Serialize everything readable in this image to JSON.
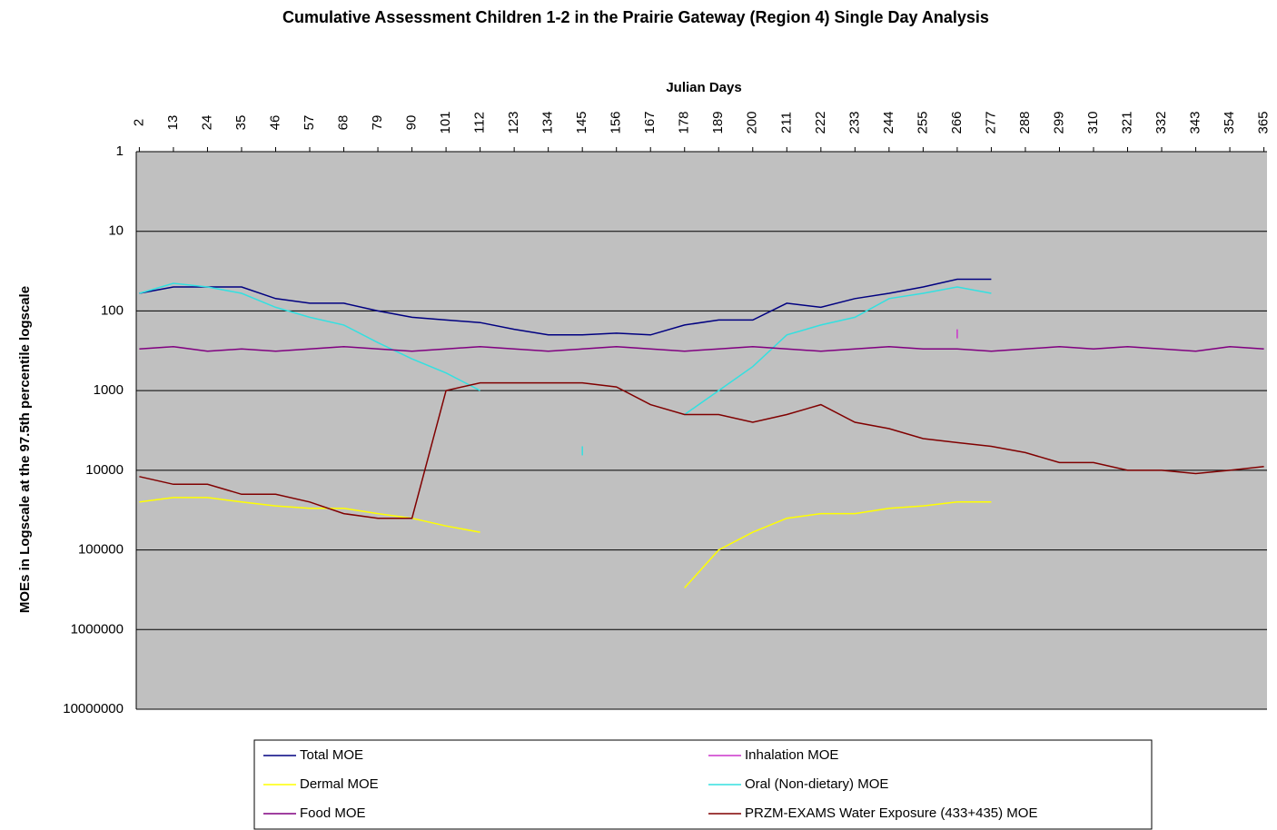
{
  "chart_data": {
    "type": "line",
    "title": "Cumulative Assessment Children 1-2 in the Prairie Gateway (Region 4) Single Day Analysis",
    "x_label": "Julian Days",
    "y_label": "MOEs in Logscale at the 97.5th percentile logscale",
    "x": [
      2,
      13,
      24,
      35,
      46,
      57,
      68,
      79,
      90,
      101,
      112,
      123,
      134,
      145,
      156,
      167,
      178,
      189,
      200,
      211,
      222,
      233,
      244,
      255,
      266,
      277,
      288,
      299,
      310,
      321,
      332,
      343,
      354,
      365
    ],
    "xlim": [
      1,
      366
    ],
    "xticks": [
      2,
      13,
      24,
      35,
      46,
      57,
      68,
      79,
      90,
      101,
      112,
      123,
      134,
      145,
      156,
      167,
      178,
      189,
      200,
      211,
      222,
      233,
      244,
      255,
      266,
      277,
      288,
      299,
      310,
      321,
      332,
      343,
      354,
      365
    ],
    "ylim": [
      1,
      10000000
    ],
    "yticks": [
      1,
      10,
      100,
      1000,
      10000,
      100000,
      1000000,
      10000000
    ],
    "log_y": true,
    "y_inverted": true,
    "x_axis_position": "top",
    "grid": true,
    "plot_background": "#c0c0c0",
    "legend_position": "bottom",
    "series": [
      {
        "name": "Total MOE",
        "color": "#000080",
        "values": [
          60,
          50,
          50,
          50,
          70,
          80,
          80,
          100,
          120,
          130,
          140,
          170,
          200,
          200,
          190,
          200,
          150,
          130,
          130,
          80,
          90,
          70,
          60,
          50,
          40,
          40,
          null,
          null,
          null,
          null,
          null,
          null,
          null,
          null
        ]
      },
      {
        "name": "Inhalation MOE",
        "color": "#cc33cc",
        "values": [
          null,
          null,
          null,
          null,
          null,
          null,
          null,
          null,
          null,
          null,
          null,
          null,
          null,
          null,
          null,
          null,
          null,
          null,
          null,
          null,
          null,
          null,
          null,
          null,
          170,
          null,
          null,
          null,
          null,
          null,
          null,
          null,
          null,
          null
        ]
      },
      {
        "name": "Dermal MOE",
        "color": "#ffff00",
        "values": [
          25000,
          22000,
          22000,
          25000,
          28000,
          30000,
          30000,
          35000,
          40000,
          50000,
          60000,
          null,
          null,
          null,
          null,
          null,
          300000,
          100000,
          60000,
          40000,
          35000,
          35000,
          30000,
          28000,
          25000,
          25000,
          null,
          null,
          null,
          null,
          null,
          null,
          null,
          null
        ]
      },
      {
        "name": "Oral (Non-dietary) MOE",
        "color": "#33e0e0",
        "values": [
          60,
          45,
          50,
          60,
          90,
          120,
          150,
          250,
          400,
          600,
          1000,
          null,
          null,
          5000,
          null,
          null,
          2000,
          1000,
          500,
          200,
          150,
          120,
          70,
          60,
          50,
          60,
          null,
          null,
          null,
          null,
          null,
          null,
          null,
          null
        ]
      },
      {
        "name": "Food MOE",
        "color": "#800080",
        "values": [
          300,
          280,
          320,
          300,
          320,
          300,
          280,
          300,
          320,
          300,
          280,
          300,
          320,
          300,
          280,
          300,
          320,
          300,
          280,
          300,
          320,
          300,
          280,
          300,
          300,
          320,
          300,
          280,
          300,
          280,
          300,
          320,
          280,
          300
        ]
      },
      {
        "name": "PRZM-EXAMS Water Exposure (433+435) MOE",
        "color": "#800000",
        "values": [
          12000,
          15000,
          15000,
          20000,
          20000,
          25000,
          35000,
          40000,
          40000,
          1000,
          800,
          800,
          800,
          800,
          900,
          1500,
          2000,
          2000,
          2500,
          2000,
          1500,
          2500,
          3000,
          4000,
          4500,
          5000,
          6000,
          8000,
          8000,
          10000,
          10000,
          11000,
          10000,
          9000
        ]
      }
    ]
  }
}
